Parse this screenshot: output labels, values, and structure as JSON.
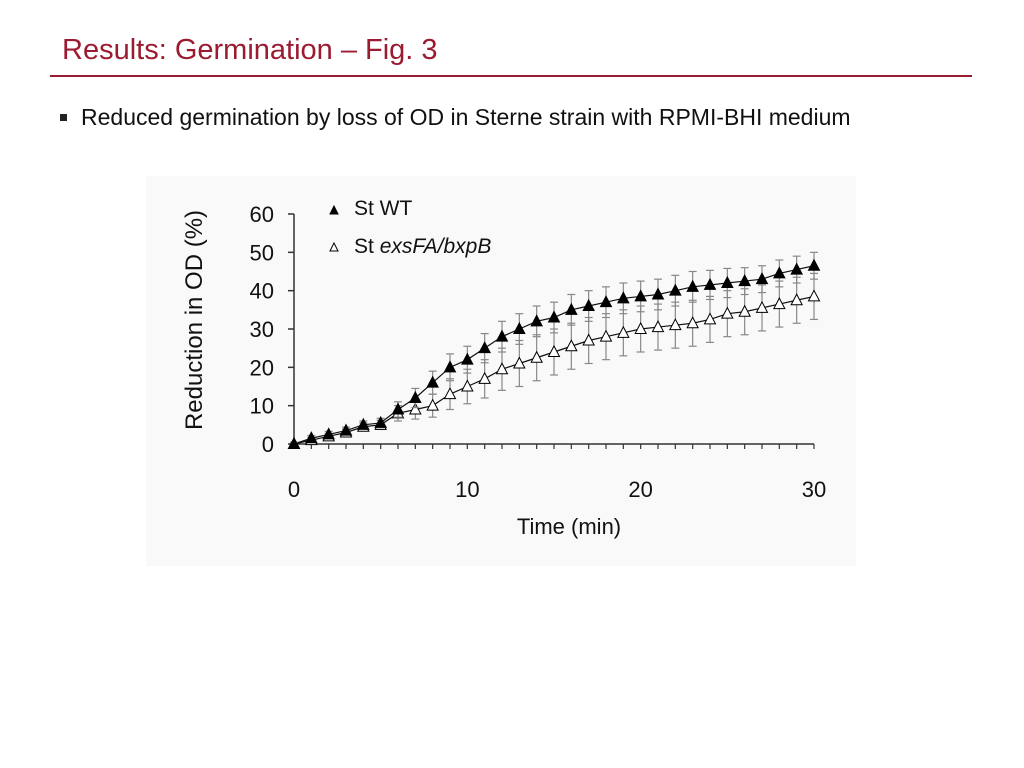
{
  "slide": {
    "title": "Results: Germination – Fig. 3",
    "bullet": "Reduced germination by loss of OD in Sterne strain with RPMI-BHI medium"
  },
  "colors": {
    "title": "#9b1b30",
    "rule": "#9b1b30",
    "series_wt": "#000000",
    "series_mutant": "#ffffff",
    "error_bar": "#888888"
  },
  "chart_data": {
    "type": "line",
    "xlabel": "Time (min)",
    "ylabel": "Reduction in OD (%)",
    "xlim": [
      0,
      30
    ],
    "ylim": [
      0,
      60
    ],
    "xticks": [
      0,
      10,
      20,
      30
    ],
    "yticks": [
      0,
      10,
      20,
      30,
      40,
      50,
      60
    ],
    "grid": false,
    "legend_position": "top-left",
    "x": [
      0,
      1,
      2,
      3,
      4,
      5,
      6,
      7,
      8,
      9,
      10,
      11,
      12,
      13,
      14,
      15,
      16,
      17,
      18,
      19,
      20,
      21,
      22,
      23,
      24,
      25,
      26,
      27,
      28,
      29,
      30
    ],
    "series": [
      {
        "name": "St WT",
        "marker": "filled-triangle",
        "values": [
          0,
          1.5,
          2.5,
          3.5,
          5,
          5.5,
          9,
          12,
          16,
          20,
          22,
          25,
          28,
          30,
          32,
          33,
          35,
          36,
          37,
          38,
          38.5,
          39,
          40,
          41,
          41.5,
          42,
          42.5,
          43,
          44.5,
          45.5,
          46.5
        ],
        "errors": [
          0.5,
          0.7,
          0.8,
          0.9,
          1,
          1.2,
          2,
          2.5,
          3,
          3.5,
          3.5,
          3.8,
          4,
          4,
          4,
          4,
          4,
          4,
          4,
          4,
          4,
          4,
          4,
          4,
          3.8,
          3.8,
          3.5,
          3.5,
          3.5,
          3.5,
          3.5
        ]
      },
      {
        "name": "St exsFA/bxpB",
        "marker": "open-triangle",
        "values": [
          0,
          1,
          2,
          3,
          4.5,
          5,
          8,
          9,
          10,
          13,
          15,
          17,
          19.5,
          21,
          22.5,
          24,
          25.5,
          27,
          28,
          29,
          30,
          30.5,
          31,
          31.5,
          32.5,
          34,
          34.5,
          35.5,
          36.5,
          37.5,
          38.5
        ],
        "errors": [
          0.5,
          0.7,
          0.8,
          0.9,
          1,
          1.2,
          2,
          2.5,
          3,
          4,
          4.5,
          5,
          5.5,
          6,
          6,
          6,
          6,
          6,
          6,
          6,
          6,
          6,
          6,
          6,
          6,
          6,
          6,
          6,
          6,
          6,
          6
        ]
      }
    ]
  }
}
